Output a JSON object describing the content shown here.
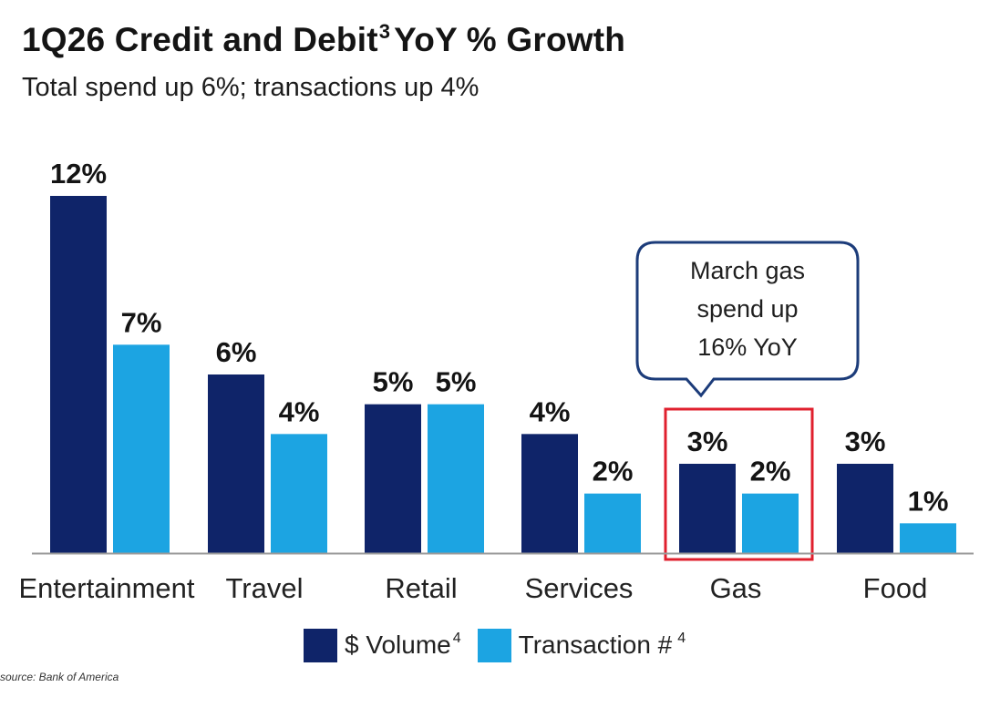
{
  "header": {
    "title_main": "1Q26 Credit and Debit",
    "title_sup": "3",
    "title_rest": "YoY % Growth",
    "subtitle": "Total spend up 6%; transactions up 4%"
  },
  "chart_data": {
    "type": "bar",
    "title": "1Q26 Credit and Debit³ YoY % Growth",
    "subtitle": "Total spend up 6%; transactions up 4%",
    "categories": [
      "Entertainment",
      "Travel",
      "Retail",
      "Services",
      "Gas",
      "Food"
    ],
    "series": [
      {
        "name": "$ Volume",
        "footnote": "4",
        "color": "#0f2469",
        "values": [
          12,
          6,
          5,
          4,
          3,
          3
        ],
        "labels": [
          "12%",
          "6%",
          "5%",
          "4%",
          "3%",
          "3%"
        ]
      },
      {
        "name": "Transaction #",
        "footnote": "4",
        "color": "#1ca4e2",
        "values": [
          7,
          4,
          5,
          2,
          2,
          1
        ],
        "labels": [
          "7%",
          "4%",
          "5%",
          "2%",
          "2%",
          "1%"
        ]
      }
    ],
    "ylim": [
      0,
      12
    ],
    "xlabel": "",
    "ylabel": "",
    "highlight_category": "Gas",
    "highlight_color": "#e0202e",
    "callout": {
      "category": "Gas",
      "lines": [
        "March gas",
        "spend up",
        "16% YoY"
      ],
      "border_color": "#1c3c7a"
    },
    "legend_position": "bottom-center",
    "source": "source: Bank of America"
  }
}
